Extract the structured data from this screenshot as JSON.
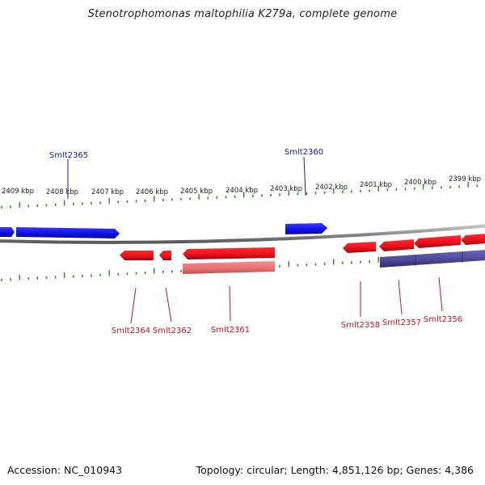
{
  "title": "Stenotrophomonas maltophilia K279a, complete genome",
  "footer": {
    "accession": "Accession: NC_010943",
    "summary": "Topology: circular; Length: 4,851,126 bp; Genes: 4,386"
  },
  "colors": {
    "forward_gene": "#1a1aee",
    "reverse_gene": "#e8101a",
    "reverse_light": "#e87878",
    "feature_other": "#4a4694",
    "backbone": "#8a8a8a",
    "ruler": "#2a8a1a",
    "label_forward": "#1a1aa0",
    "label_reverse": "#c0141c"
  },
  "ruler_labels": [
    "2409 kbp",
    "2408 kbp",
    "2407 kbp",
    "2406 kbp",
    "2405 kbp",
    "2404 kbp",
    "2403 kbp",
    "2402 kbp",
    "2401 kbp",
    "2400 kbp",
    "2399 kbp"
  ],
  "gene_labels": {
    "forward": [
      "Smlt2365",
      "Smlt2360"
    ],
    "reverse": [
      "Smlt2364",
      "Smlt2362",
      "Smlt2361",
      "Smlt2358",
      "Smlt2357",
      "Smlt2356"
    ]
  }
}
